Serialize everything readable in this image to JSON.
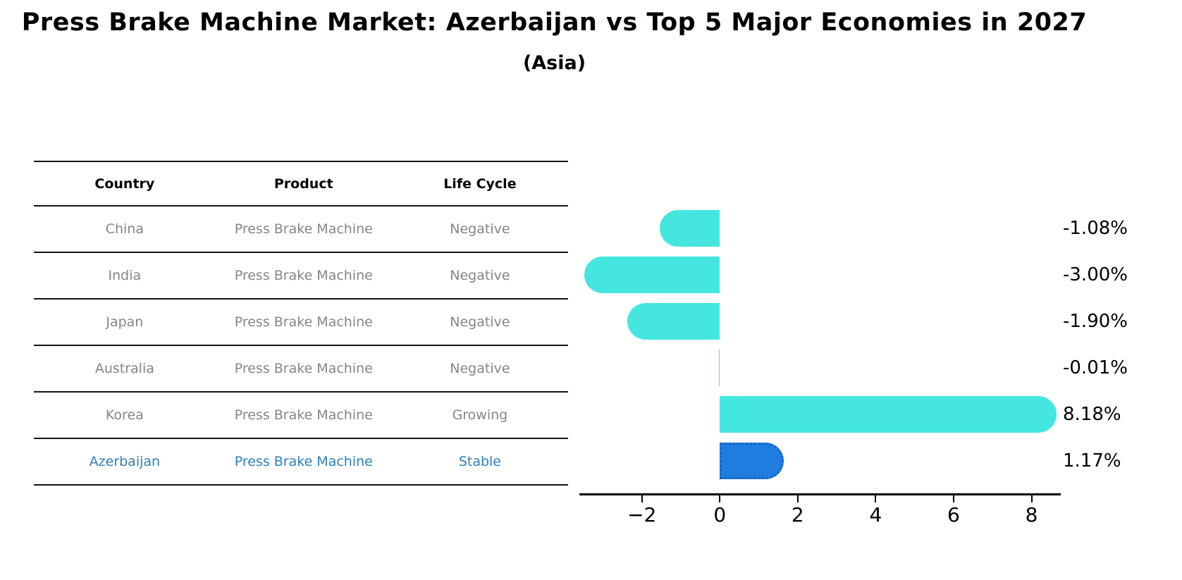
{
  "header": {
    "title": "Press Brake Machine Market: Azerbaijan vs Top 5 Major Economies in 2027",
    "subtitle": "(Asia)"
  },
  "table": {
    "headers": [
      "Country",
      "Product",
      "Life Cycle"
    ],
    "rows": [
      {
        "country": "China",
        "product": "Press Brake Machine",
        "life_cycle": "Negative",
        "highlight": false
      },
      {
        "country": "India",
        "product": "Press Brake Machine",
        "life_cycle": "Negative",
        "highlight": false
      },
      {
        "country": "Japan",
        "product": "Press Brake Machine",
        "life_cycle": "Negative",
        "highlight": false
      },
      {
        "country": "Australia",
        "product": "Press Brake Machine",
        "life_cycle": "Negative",
        "highlight": false
      },
      {
        "country": "Korea",
        "product": "Press Brake Machine",
        "life_cycle": "Growing",
        "highlight": false
      },
      {
        "country": "Azerbaijan",
        "product": "Press Brake Machine",
        "life_cycle": "Stable",
        "highlight": true
      }
    ]
  },
  "chart_data": {
    "type": "bar",
    "orientation": "horizontal",
    "title": "Press Brake Machine Market: Azerbaijan vs Top 5 Major Economies in 2027 (Asia)",
    "categories": [
      "China",
      "India",
      "Japan",
      "Australia",
      "Korea",
      "Azerbaijan"
    ],
    "values": [
      -1.08,
      -3.0,
      -1.9,
      -0.01,
      8.18,
      1.17
    ],
    "value_labels": [
      "-1.08%",
      "-3.00%",
      "-1.90%",
      "-0.01%",
      "8.18%",
      "1.17%"
    ],
    "x_ticks": [
      -2,
      0,
      2,
      4,
      6,
      8
    ],
    "x_tick_labels": [
      "−2",
      "0",
      "2",
      "4",
      "6",
      "8"
    ],
    "xlim": [
      -3.605,
      8.75
    ],
    "grid": false,
    "legend": null,
    "bar_color": "#45E6E0",
    "highlight_color": "#1F7DDF",
    "highlight_index": 5,
    "rounded_caps": true
  },
  "colors": {
    "background": "#ffffff",
    "table_line": "#141414",
    "table_text": "#858585",
    "header_text": "#000000",
    "highlight_text": "#2E7EBF",
    "axis": "#000000"
  }
}
